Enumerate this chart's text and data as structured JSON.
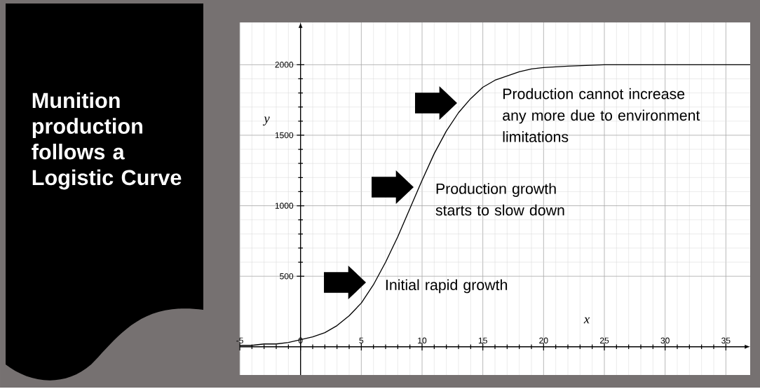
{
  "chart_data": {
    "type": "line",
    "title": "Munition production follows a Logistic Curve",
    "xlabel": "x",
    "ylabel": "y",
    "x": [
      -5,
      -4,
      -3,
      -2,
      -1,
      0,
      1,
      2,
      3,
      4,
      5,
      6,
      7,
      8,
      9,
      10,
      11,
      12,
      13,
      14,
      15,
      16,
      17,
      18,
      19,
      20,
      22,
      25,
      30,
      37
    ],
    "values": [
      10,
      10,
      20,
      20,
      30,
      50,
      70,
      100,
      150,
      220,
      310,
      440,
      600,
      780,
      980,
      1180,
      1370,
      1530,
      1660,
      1760,
      1840,
      1890,
      1920,
      1950,
      1970,
      1980,
      1990,
      2000,
      2000,
      2000
    ],
    "color": "#000000",
    "xlim": [
      -5,
      37
    ],
    "ylim": [
      -200,
      2300
    ],
    "xticks": [
      -5,
      0,
      5,
      10,
      15,
      20,
      25,
      30,
      35
    ],
    "yticks": [
      500,
      1000,
      1500,
      2000
    ],
    "grid": true,
    "annotations": [
      "Initial rapid growth",
      "Production growth starts to slow down",
      "Production cannot increase any more due to environment limitations"
    ]
  }
}
